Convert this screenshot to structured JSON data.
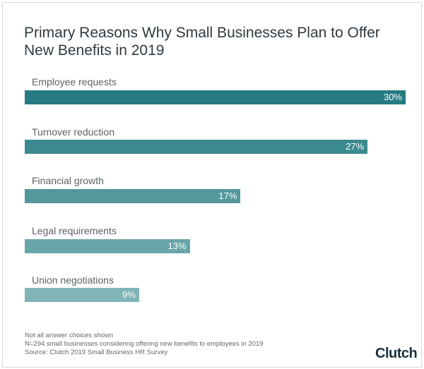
{
  "chart_data": {
    "type": "bar",
    "orientation": "horizontal",
    "title": "Primary Reasons Why Small Businesses Plan to Offer New Benefits in 2019",
    "categories": [
      "Employee requests",
      "Turnover reduction",
      "Financial growth",
      "Legal requirements",
      "Union negotiations"
    ],
    "values": [
      30,
      27,
      17,
      13,
      9
    ],
    "value_labels": [
      "30%",
      "27%",
      "17%",
      "13%",
      "9%"
    ],
    "colors": [
      "#267b82",
      "#3b8a8f",
      "#52989c",
      "#68a5a8",
      "#80b4b6"
    ],
    "xlim": [
      0,
      30
    ],
    "grid": false
  },
  "notes": [
    "Not all answer choices shown",
    "N=294 small businesses considering offering new benefits to employees in 2019",
    "Source: Clutch 2019 Small Business HR Survey"
  ],
  "logo": "Clutch"
}
